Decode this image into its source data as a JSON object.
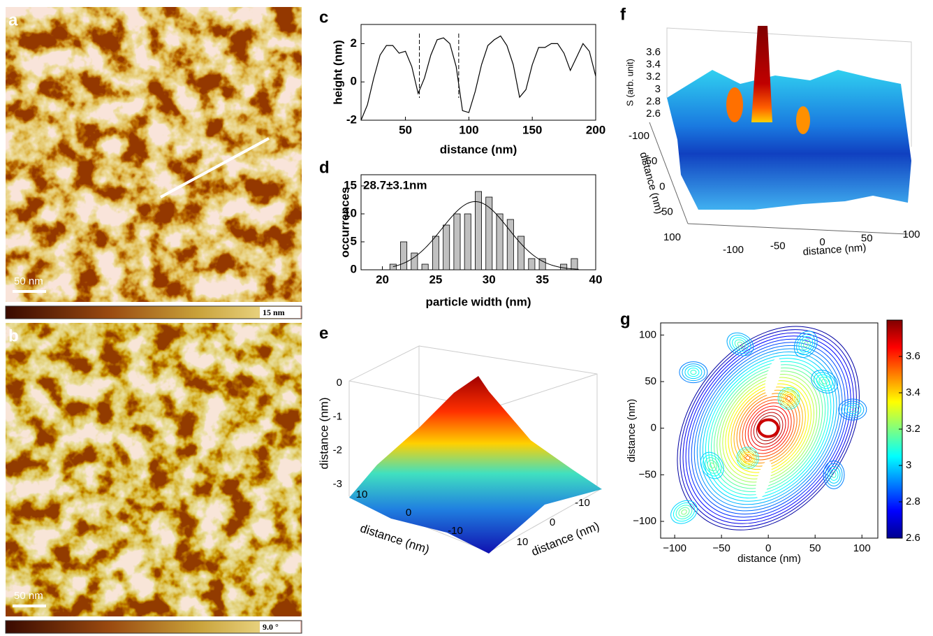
{
  "panels": [
    {
      "label": "a",
      "scale_bar": "50 nm",
      "colorbar_label": "15 nm"
    },
    {
      "label": "b",
      "scale_bar": "50 nm",
      "colorbar_label": "9.0 °"
    }
  ],
  "chart_data": [
    {
      "panel": "c",
      "type": "line",
      "xlabel": "distance (nm)",
      "ylabel": "height (nm)",
      "x": [
        15,
        20,
        25,
        30,
        35,
        40,
        45,
        50,
        55,
        60,
        65,
        70,
        75,
        80,
        85,
        90,
        95,
        100,
        105,
        110,
        115,
        120,
        125,
        130,
        135,
        140,
        145,
        150,
        155,
        160,
        165,
        170,
        175,
        180,
        185,
        190,
        195,
        200
      ],
      "values": [
        -2,
        -1.2,
        0.2,
        1.4,
        1.9,
        1.9,
        1.5,
        1.6,
        0.8,
        -0.6,
        0.2,
        1.4,
        2.2,
        2.3,
        2.0,
        0.8,
        -1.5,
        -1.6,
        -0.5,
        0.9,
        1.9,
        2.2,
        2.4,
        1.9,
        0.9,
        -0.8,
        -0.4,
        0.9,
        1.8,
        1.8,
        2.0,
        2.0,
        1.5,
        0.6,
        1.3,
        2.0,
        1.6,
        0.3
      ],
      "xlim": [
        15,
        200
      ],
      "ylim": [
        -2,
        3
      ],
      "xticks": [
        50,
        100,
        150,
        200
      ],
      "yticks": [
        -2,
        0,
        2
      ],
      "vlines": [
        61,
        92
      ],
      "color": "#000000"
    },
    {
      "panel": "d",
      "type": "bar",
      "xlabel": "particle width (nm)",
      "ylabel": "occurrences",
      "x": [
        21,
        22,
        23,
        24,
        25,
        26,
        27,
        28,
        29,
        30,
        31,
        32,
        33,
        34,
        35,
        36,
        37,
        38
      ],
      "values": [
        1,
        5,
        3,
        1,
        6,
        8,
        10,
        10,
        14,
        13,
        10,
        9,
        6,
        2,
        2,
        0,
        1,
        2
      ],
      "xlim": [
        18,
        40
      ],
      "ylim": [
        0,
        17
      ],
      "xticks": [
        20,
        25,
        30,
        35,
        40
      ],
      "yticks": [
        0,
        5,
        10,
        15
      ],
      "annotation": "28.7±3.1nm",
      "fit": {
        "mean": 28.7,
        "sd": 3.1,
        "peak": 12.2
      },
      "color": "#c0c0c0"
    },
    {
      "panel": "e",
      "type": "surface",
      "xlabel": "distance (nm)",
      "ylabel": "distance (nm)",
      "zlabel": "distance (nm)",
      "xticks": [
        10,
        0,
        -10
      ],
      "yticks": [
        -10,
        0,
        10
      ],
      "zticks": [
        0,
        -1,
        -2,
        -3
      ]
    },
    {
      "panel": "f",
      "type": "surface",
      "xlabel": "distance (nm)",
      "ylabel": "distance (nm)",
      "zlabel": "S (arb. unit)",
      "xticks": [
        -100,
        -50,
        0,
        50,
        100
      ],
      "yticks": [
        -100,
        -50,
        0,
        50,
        100
      ],
      "zticks": [
        2.6,
        2.8,
        3,
        3.2,
        3.4,
        3.6
      ]
    },
    {
      "panel": "g",
      "type": "contour",
      "xlabel": "distance (nm)",
      "ylabel": "distance (nm)",
      "xlim": [
        -115,
        117
      ],
      "ylim": [
        -118,
        113
      ],
      "xticks": [
        {
          "value": -100,
          "label": "−100"
        },
        {
          "value": -50,
          "label": "−50"
        },
        0,
        50,
        100
      ],
      "yticks": [
        {
          "value": -100,
          "label": "−100"
        },
        {
          "value": -50,
          "label": "−50"
        },
        0,
        50,
        100
      ],
      "clim": [
        2.6,
        3.8
      ],
      "cticks": [
        2.6,
        2.8,
        3,
        3.2,
        3.4,
        3.6
      ]
    }
  ]
}
